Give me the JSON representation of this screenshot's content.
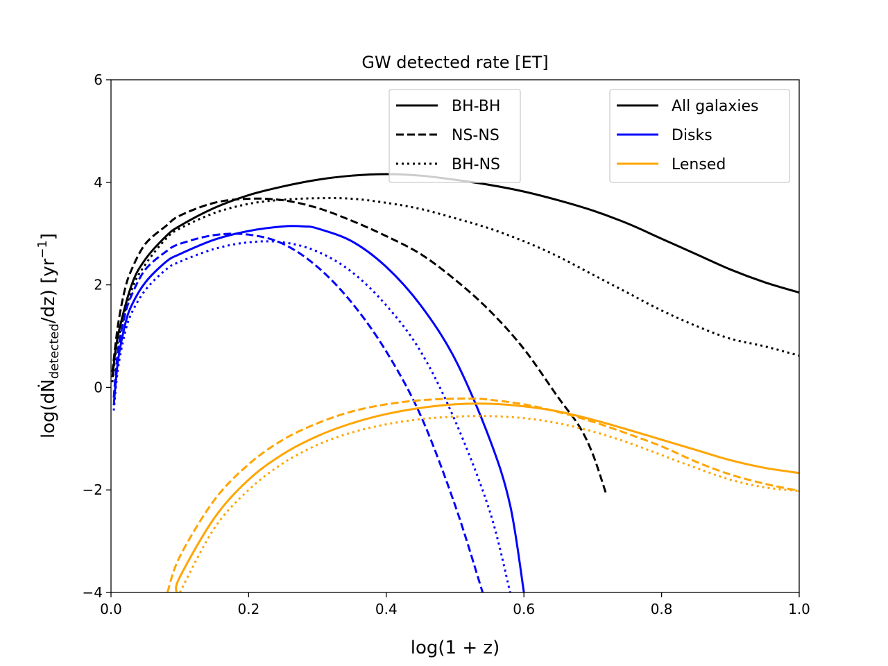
{
  "chart_data": {
    "type": "line",
    "title": "GW detected rate [ET]",
    "xlabel": "log(1 + z)",
    "ylabel_parts": {
      "prefix": "log(d",
      "N": "Ṅ",
      "subscript": "detected",
      "mid": "/dz) [yr",
      "superscript": "−1",
      "suffix": "]"
    },
    "xlim": [
      0.0,
      1.0
    ],
    "ylim": [
      -4,
      6
    ],
    "xticks": [
      0.0,
      0.2,
      0.4,
      0.6,
      0.8,
      1.0
    ],
    "xtick_labels": [
      "0.0",
      "0.2",
      "0.4",
      "0.6",
      "0.8",
      "1.0"
    ],
    "yticks": [
      -4,
      -2,
      0,
      2,
      4,
      6
    ],
    "ytick_labels": [
      "−4",
      "−2",
      "0",
      "2",
      "4",
      "6"
    ],
    "colors": {
      "all": "#000000",
      "disks": "#0000ff",
      "lensed": "#ffa500"
    },
    "legend_linestyle": {
      "location": "upper-center",
      "entries": [
        {
          "label": "BH-BH",
          "style": "solid"
        },
        {
          "label": "NS-NS",
          "style": "dashed"
        },
        {
          "label": "BH-NS",
          "style": "dotted"
        }
      ]
    },
    "legend_population": {
      "location": "upper-right",
      "entries": [
        {
          "label": "All galaxies",
          "color": "#000000"
        },
        {
          "label": "Disks",
          "color": "#0000ff"
        },
        {
          "label": "Lensed",
          "color": "#ffa500"
        }
      ]
    },
    "series": [
      {
        "name": "All galaxies BH-BH",
        "color": "#000000",
        "style": "solid",
        "x": [
          0.002,
          0.01,
          0.03,
          0.05,
          0.08,
          0.1,
          0.15,
          0.2,
          0.25,
          0.3,
          0.35,
          0.4,
          0.45,
          0.5,
          0.55,
          0.6,
          0.65,
          0.7,
          0.75,
          0.8,
          0.85,
          0.9,
          0.95,
          1.0
        ],
        "y": [
          0.2,
          1.0,
          2.0,
          2.5,
          2.95,
          3.15,
          3.5,
          3.75,
          3.92,
          4.05,
          4.13,
          4.16,
          4.13,
          4.05,
          3.95,
          3.82,
          3.65,
          3.45,
          3.2,
          2.9,
          2.6,
          2.3,
          2.05,
          1.85
        ]
      },
      {
        "name": "All galaxies NS-NS",
        "color": "#000000",
        "style": "dashed",
        "x": [
          0.002,
          0.01,
          0.02,
          0.03,
          0.05,
          0.08,
          0.1,
          0.15,
          0.2,
          0.25,
          0.3,
          0.35,
          0.4,
          0.45,
          0.5,
          0.55,
          0.6,
          0.65,
          0.68,
          0.7,
          0.72
        ],
        "y": [
          0.3,
          1.2,
          1.9,
          2.3,
          2.8,
          3.15,
          3.35,
          3.6,
          3.68,
          3.65,
          3.5,
          3.25,
          2.95,
          2.6,
          2.1,
          1.5,
          0.75,
          -0.2,
          -0.75,
          -1.3,
          -2.1
        ]
      },
      {
        "name": "All galaxies BH-NS",
        "color": "#000000",
        "style": "dotted",
        "x": [
          0.002,
          0.01,
          0.03,
          0.05,
          0.08,
          0.1,
          0.15,
          0.2,
          0.25,
          0.3,
          0.35,
          0.4,
          0.45,
          0.5,
          0.55,
          0.6,
          0.65,
          0.7,
          0.75,
          0.8,
          0.85,
          0.9,
          0.95,
          1.0
        ],
        "y": [
          0.1,
          0.9,
          1.9,
          2.4,
          2.9,
          3.1,
          3.4,
          3.58,
          3.66,
          3.69,
          3.68,
          3.6,
          3.48,
          3.3,
          3.1,
          2.85,
          2.55,
          2.2,
          1.85,
          1.5,
          1.2,
          0.95,
          0.8,
          0.62
        ]
      },
      {
        "name": "Disks BH-BH",
        "color": "#0000ff",
        "style": "solid",
        "x": [
          0.004,
          0.01,
          0.02,
          0.03,
          0.05,
          0.08,
          0.1,
          0.15,
          0.2,
          0.25,
          0.28,
          0.3,
          0.35,
          0.4,
          0.45,
          0.5,
          0.55,
          0.58,
          0.6
        ],
        "y": [
          -0.35,
          0.5,
          1.2,
          1.6,
          2.05,
          2.45,
          2.6,
          2.88,
          3.05,
          3.14,
          3.14,
          3.1,
          2.85,
          2.35,
          1.6,
          0.55,
          -1.0,
          -2.3,
          -4.0
        ]
      },
      {
        "name": "Disks NS-NS",
        "color": "#0000ff",
        "style": "dashed",
        "x": [
          0.004,
          0.01,
          0.02,
          0.03,
          0.05,
          0.08,
          0.1,
          0.15,
          0.2,
          0.25,
          0.3,
          0.35,
          0.4,
          0.45,
          0.5,
          0.54
        ],
        "y": [
          -0.2,
          0.7,
          1.4,
          1.8,
          2.3,
          2.65,
          2.8,
          2.97,
          2.98,
          2.8,
          2.35,
          1.65,
          0.7,
          -0.55,
          -2.3,
          -4.0
        ]
      },
      {
        "name": "Disks BH-NS",
        "color": "#0000ff",
        "style": "dotted",
        "x": [
          0.004,
          0.01,
          0.02,
          0.03,
          0.05,
          0.08,
          0.1,
          0.15,
          0.2,
          0.25,
          0.3,
          0.35,
          0.4,
          0.45,
          0.5,
          0.55,
          0.58
        ],
        "y": [
          -0.45,
          0.35,
          1.05,
          1.45,
          1.9,
          2.3,
          2.45,
          2.7,
          2.83,
          2.83,
          2.65,
          2.25,
          1.6,
          0.7,
          -0.65,
          -2.4,
          -4.0
        ]
      },
      {
        "name": "Lensed BH-BH",
        "color": "#ffa500",
        "style": "solid",
        "x": [
          0.095,
          0.1,
          0.15,
          0.2,
          0.25,
          0.3,
          0.35,
          0.4,
          0.45,
          0.5,
          0.55,
          0.6,
          0.65,
          0.7,
          0.75,
          0.8,
          0.85,
          0.9,
          0.95,
          1.0
        ],
        "y": [
          -4.0,
          -3.7,
          -2.55,
          -1.8,
          -1.3,
          -0.95,
          -0.7,
          -0.52,
          -0.4,
          -0.33,
          -0.32,
          -0.37,
          -0.47,
          -0.63,
          -0.82,
          -1.02,
          -1.22,
          -1.42,
          -1.57,
          -1.67
        ]
      },
      {
        "name": "Lensed NS-NS",
        "color": "#ffa500",
        "style": "dashed",
        "x": [
          0.082,
          0.1,
          0.15,
          0.2,
          0.25,
          0.3,
          0.35,
          0.4,
          0.45,
          0.5,
          0.53,
          0.55,
          0.6,
          0.65,
          0.7,
          0.75,
          0.8,
          0.85,
          0.9,
          0.95,
          1.0
        ],
        "y": [
          -4.0,
          -3.3,
          -2.2,
          -1.5,
          -1.02,
          -0.7,
          -0.47,
          -0.33,
          -0.25,
          -0.22,
          -0.22,
          -0.24,
          -0.33,
          -0.48,
          -0.67,
          -0.9,
          -1.15,
          -1.45,
          -1.7,
          -1.88,
          -2.02
        ]
      },
      {
        "name": "Lensed BH-NS",
        "color": "#ffa500",
        "style": "dotted",
        "x": [
          0.1,
          0.15,
          0.2,
          0.25,
          0.3,
          0.35,
          0.4,
          0.45,
          0.5,
          0.55,
          0.6,
          0.65,
          0.7,
          0.75,
          0.8,
          0.85,
          0.9,
          0.95,
          1.0
        ],
        "y": [
          -4.0,
          -2.75,
          -2.0,
          -1.48,
          -1.12,
          -0.88,
          -0.72,
          -0.62,
          -0.57,
          -0.56,
          -0.6,
          -0.7,
          -0.86,
          -1.07,
          -1.32,
          -1.57,
          -1.8,
          -1.95,
          -2.02
        ]
      }
    ]
  }
}
